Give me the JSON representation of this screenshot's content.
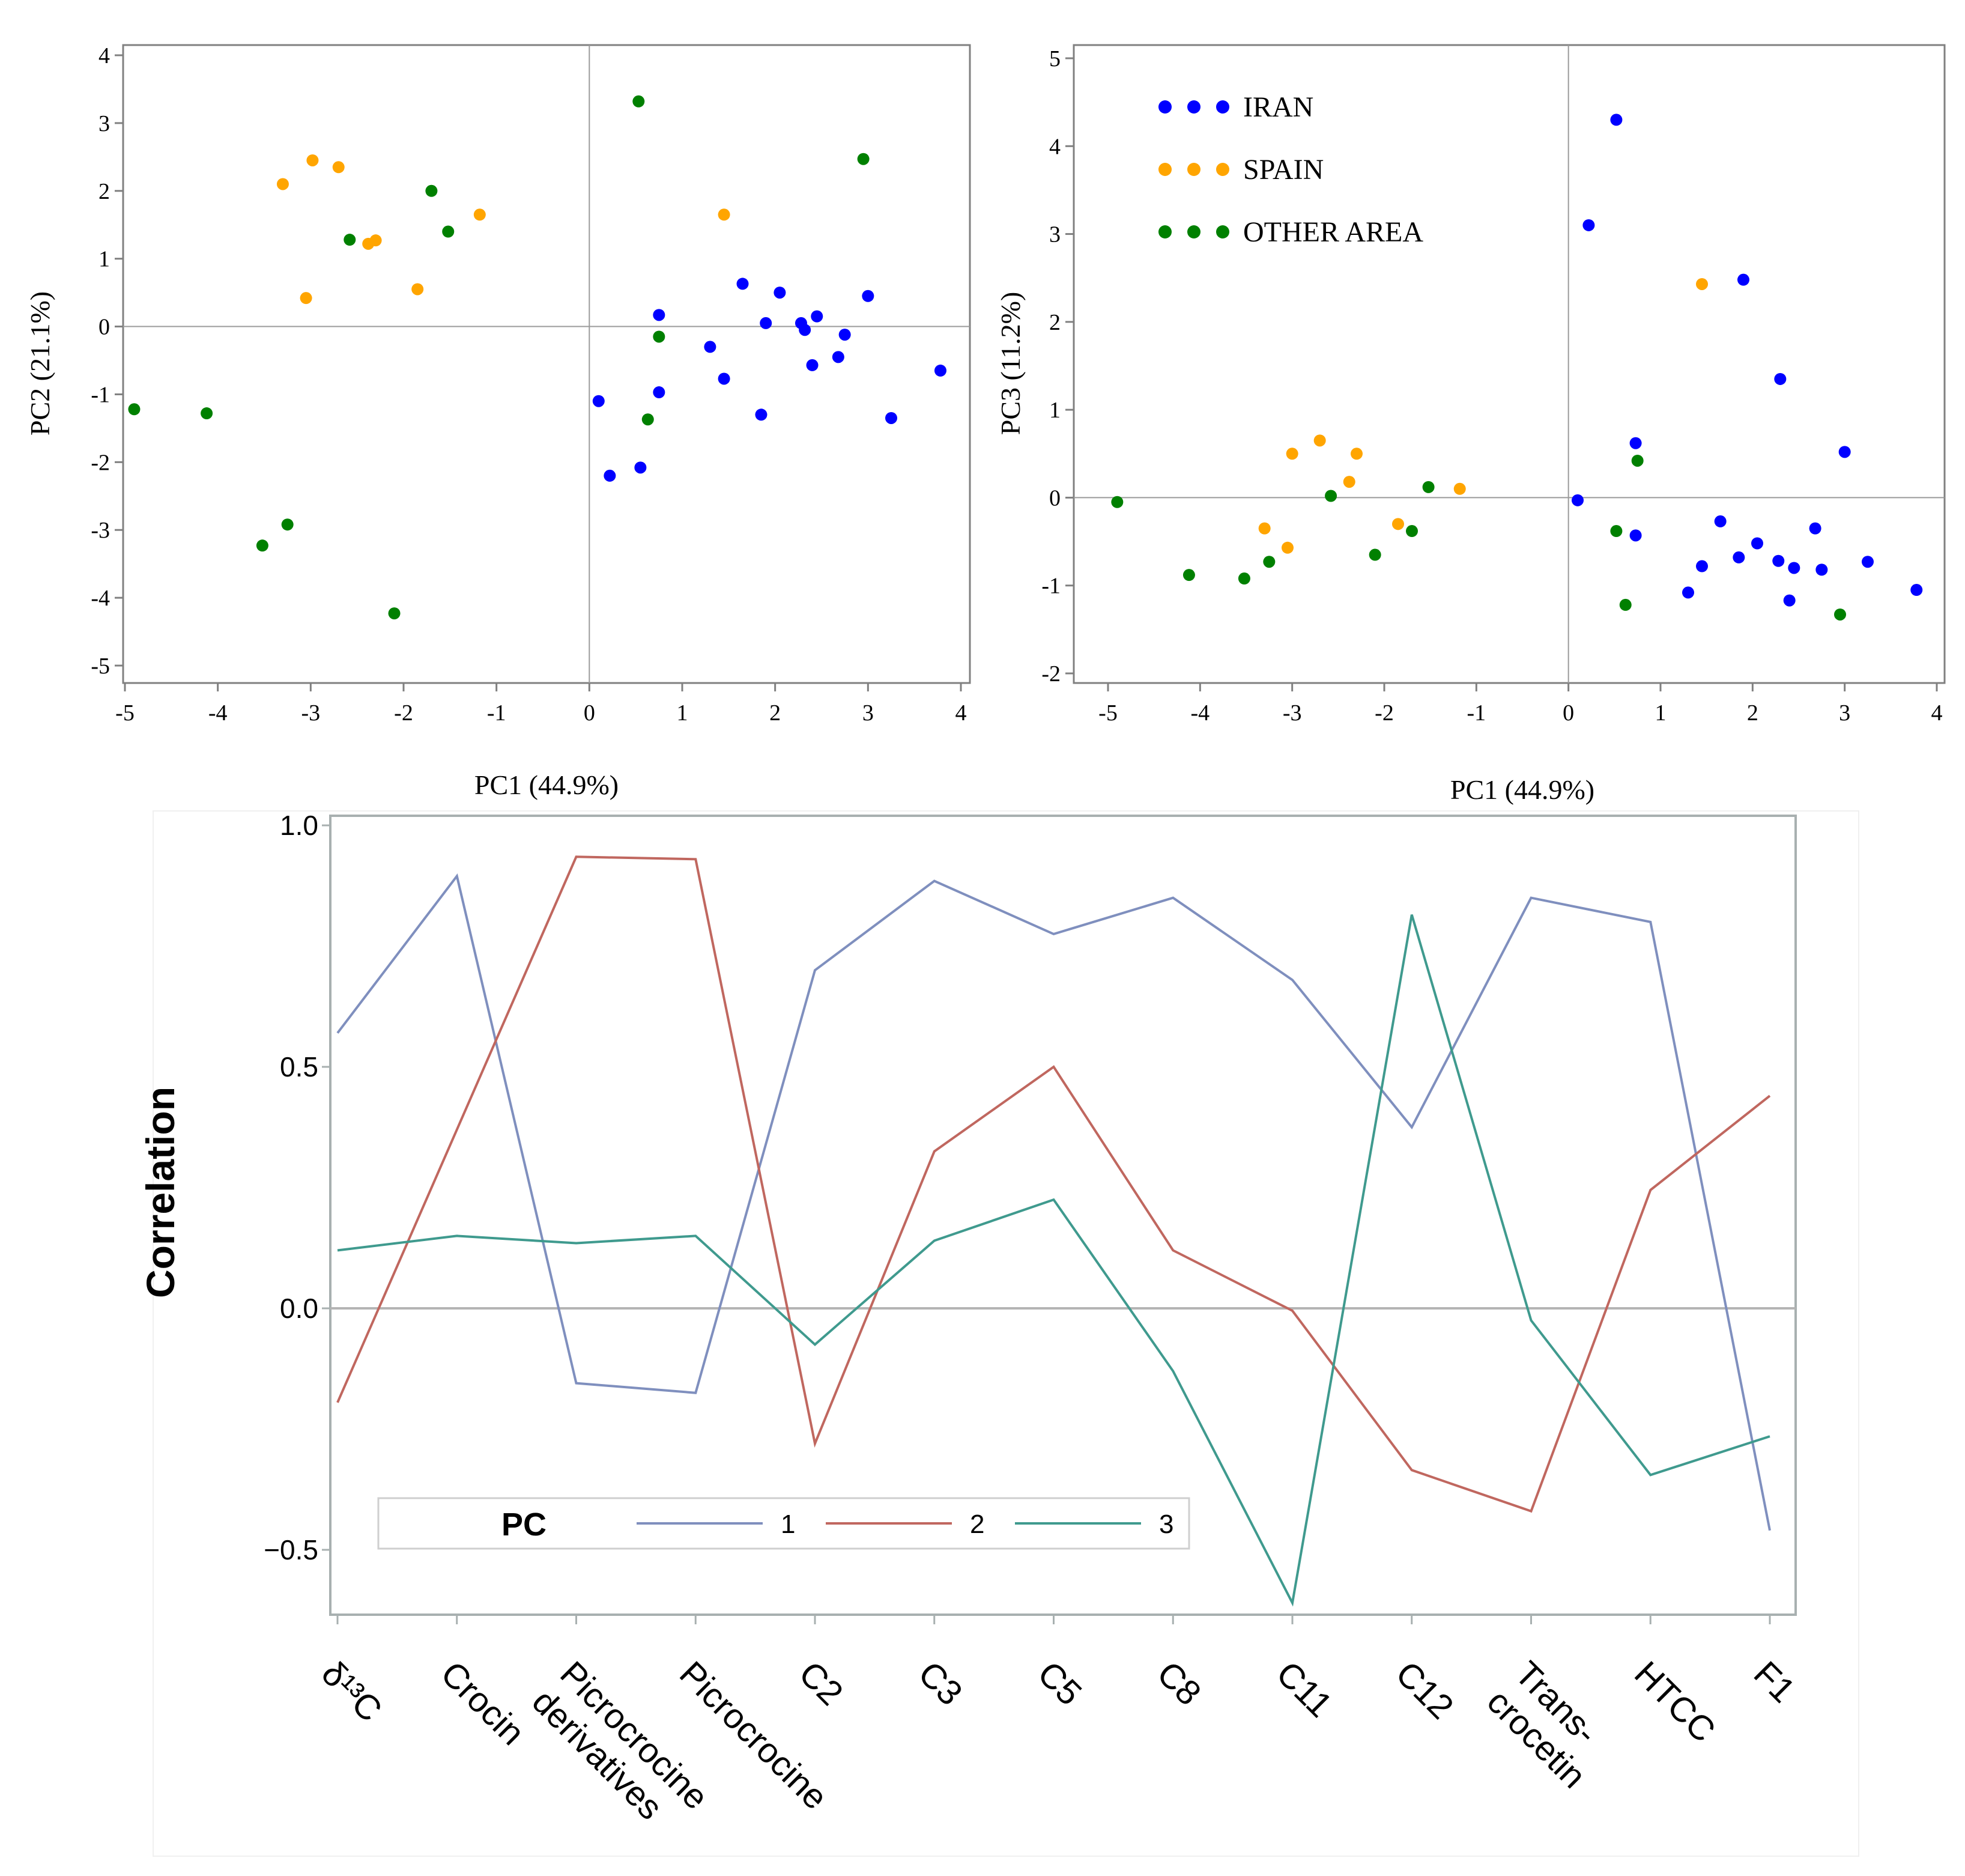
{
  "colors": {
    "iran": "#0000ff",
    "spain": "#ffa500",
    "other": "#008000",
    "pc1": "#7f8fbe",
    "pc2": "#c0675f",
    "pc3": "#3f9a8e",
    "axis": "#808080",
    "frame": "#a8b0b0"
  },
  "chart_data": [
    {
      "type": "scatter",
      "xlabel": "PC1 (44.9%)",
      "ylabel": "PC2 (21.1%)",
      "xlim": [
        -5,
        4
      ],
      "ylim": [
        -5,
        4
      ],
      "xticks": [
        "-5",
        "-4",
        "-3",
        "-2",
        "-1",
        "0",
        "1",
        "2",
        "3",
        "4"
      ],
      "yticks": [
        "4",
        "3",
        "2",
        "1",
        "0",
        "-1",
        "-2",
        "-3",
        "-4",
        "-5"
      ],
      "series": [
        {
          "name": "IRAN",
          "x": [
            0.1,
            0.22,
            0.55,
            0.75,
            0.75,
            1.3,
            1.45,
            1.65,
            1.85,
            1.9,
            2.05,
            2.28,
            2.32,
            2.4,
            2.45,
            2.68,
            2.75,
            3.0,
            3.25,
            3.78
          ],
          "y": [
            -1.1,
            -2.2,
            -2.08,
            0.17,
            -0.97,
            -0.3,
            -0.77,
            0.63,
            -1.3,
            0.05,
            0.5,
            0.05,
            -0.05,
            -0.57,
            0.15,
            -0.45,
            -0.12,
            0.45,
            -1.35,
            -0.65
          ]
        },
        {
          "name": "SPAIN",
          "x": [
            -3.3,
            -3.05,
            -2.98,
            -2.7,
            -2.38,
            -2.3,
            -1.85,
            -1.18,
            1.45
          ],
          "y": [
            2.1,
            0.42,
            2.45,
            2.35,
            1.22,
            1.27,
            0.55,
            1.65,
            1.65
          ]
        },
        {
          "name": "OTHER AREA",
          "x": [
            -4.9,
            -4.12,
            -3.52,
            -3.25,
            -2.58,
            -2.1,
            -1.7,
            -1.52,
            0.53,
            0.63,
            0.75,
            2.95
          ],
          "y": [
            -1.22,
            -1.28,
            -3.23,
            -2.92,
            1.28,
            -4.23,
            2.0,
            1.4,
            3.32,
            -1.37,
            -0.15,
            2.47
          ]
        }
      ]
    },
    {
      "type": "scatter",
      "xlabel": "PC1 (44.9%)",
      "ylabel": "PC3 (11.2%)",
      "xlim": [
        -5,
        4
      ],
      "ylim": [
        -2,
        5
      ],
      "xticks": [
        "-5",
        "-4",
        "-3",
        "-2",
        "-1",
        "0",
        "1",
        "2",
        "3",
        "4"
      ],
      "yticks": [
        "5",
        "4",
        "3",
        "2",
        "1",
        "0",
        "-1",
        "-2"
      ],
      "legend": "top-left",
      "series": [
        {
          "name": "IRAN",
          "x": [
            0.1,
            0.22,
            0.52,
            0.73,
            0.73,
            1.3,
            1.45,
            1.65,
            1.85,
            1.9,
            2.05,
            2.28,
            2.3,
            2.4,
            2.45,
            2.68,
            2.75,
            3.0,
            3.25,
            3.78
          ],
          "y": [
            -0.03,
            3.1,
            4.3,
            0.62,
            -0.43,
            -1.08,
            -0.78,
            -0.27,
            -0.68,
            2.48,
            -0.52,
            -0.72,
            1.35,
            -1.17,
            -0.8,
            -0.35,
            -0.82,
            0.52,
            -0.73,
            -1.05
          ]
        },
        {
          "name": "SPAIN",
          "x": [
            -3.3,
            -3.05,
            -3.0,
            -2.7,
            -2.38,
            -2.3,
            -1.85,
            -1.18,
            1.45
          ],
          "y": [
            -0.35,
            -0.57,
            0.5,
            0.65,
            0.18,
            0.5,
            -0.3,
            0.1,
            2.43
          ]
        },
        {
          "name": "OTHER AREA",
          "x": [
            -4.9,
            -4.12,
            -3.52,
            -3.25,
            -2.58,
            -2.1,
            -1.7,
            -1.52,
            0.52,
            0.62,
            0.75,
            2.95
          ],
          "y": [
            -0.05,
            -0.88,
            -0.92,
            -0.73,
            0.02,
            -0.65,
            -0.38,
            0.12,
            -0.38,
            -1.22,
            0.42,
            -1.33
          ]
        }
      ]
    },
    {
      "type": "line",
      "ylabel": "Correlation",
      "ylim": [
        -0.62,
        1.02
      ],
      "yticks": [
        "1.0",
        "0.5",
        "0.0",
        "−0.5"
      ],
      "categories": [
        "δ¹³C",
        "Crocin",
        "Picrocrocine derivatives",
        "Picrocrocine",
        "C2",
        "C3",
        "C5",
        "C8",
        "C11",
        "C12",
        "Trans-crocetin",
        "HTCC",
        "F1"
      ],
      "category_labels": [
        [
          "δ¹³C"
        ],
        [
          "Crocin"
        ],
        [
          "Picrocrocine",
          "derivatives"
        ],
        [
          "Picrocrocine"
        ],
        [
          "C2"
        ],
        [
          "C3"
        ],
        [
          "C5"
        ],
        [
          "C8"
        ],
        [
          "C11"
        ],
        [
          "C12"
        ],
        [
          "Trans-",
          "crocetin"
        ],
        [
          "HTCC"
        ],
        [
          "F1"
        ]
      ],
      "legend_title": "PC",
      "series": [
        {
          "name": "1",
          "values": [
            0.57,
            0.895,
            -0.155,
            -0.175,
            0.7,
            0.885,
            0.775,
            0.85,
            0.68,
            0.375,
            0.85,
            0.8,
            -0.46
          ]
        },
        {
          "name": "2",
          "values": [
            -0.195,
            0.37,
            0.935,
            0.93,
            -0.28,
            0.325,
            0.5,
            0.12,
            -0.005,
            -0.335,
            -0.42,
            0.245,
            0.44
          ]
        },
        {
          "name": "3",
          "values": [
            0.12,
            0.15,
            0.135,
            0.15,
            -0.075,
            0.14,
            0.225,
            -0.13,
            -0.61,
            0.815,
            -0.025,
            -0.345,
            -0.265
          ]
        }
      ]
    }
  ]
}
